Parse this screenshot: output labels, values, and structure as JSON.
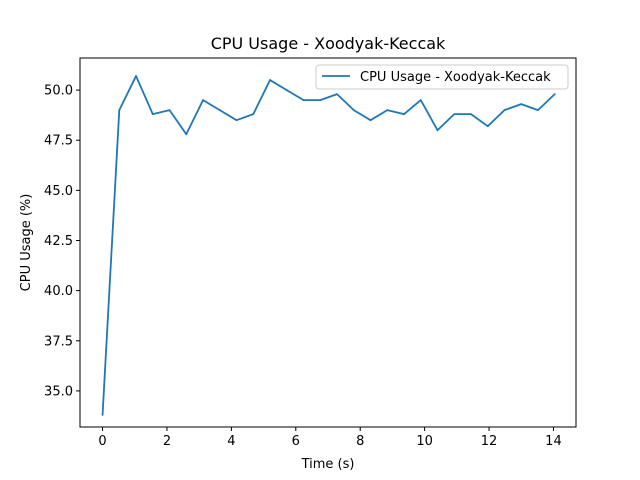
{
  "chart_data": {
    "type": "line",
    "title": "CPU Usage - Xoodyak-Keccak",
    "xlabel": "Time (s)",
    "ylabel": "CPU Usage (%)",
    "xlim": [
      -0.7,
      14.7
    ],
    "ylim": [
      33.2,
      51.6
    ],
    "xticks": [
      0,
      2,
      4,
      6,
      8,
      10,
      12,
      14
    ],
    "xtick_labels": [
      "0",
      "2",
      "4",
      "6",
      "8",
      "10",
      "12",
      "14"
    ],
    "yticks": [
      35.0,
      37.5,
      40.0,
      42.5,
      45.0,
      47.5,
      50.0
    ],
    "ytick_labels": [
      "35.0",
      "37.5",
      "40.0",
      "42.5",
      "45.0",
      "47.5",
      "50.0"
    ],
    "grid": false,
    "legend_position": "top-right",
    "series": [
      {
        "name": "CPU Usage - Xoodyak-Keccak",
        "color": "#1f77b4",
        "x": [
          0.0,
          0.52,
          1.04,
          1.56,
          2.08,
          2.6,
          3.12,
          3.64,
          4.16,
          4.68,
          5.2,
          5.72,
          6.24,
          6.76,
          7.28,
          7.8,
          8.32,
          8.84,
          9.36,
          9.88,
          10.4,
          10.92,
          11.44,
          11.96,
          12.48,
          13.0,
          13.52,
          14.04
        ],
        "y": [
          33.8,
          49.0,
          50.7,
          48.8,
          49.0,
          47.8,
          49.5,
          49.0,
          48.5,
          48.8,
          50.5,
          50.0,
          49.5,
          49.5,
          49.8,
          49.0,
          48.5,
          49.0,
          48.8,
          49.5,
          48.0,
          48.8,
          48.8,
          48.2,
          49.0,
          49.3,
          49.0,
          49.8
        ]
      }
    ]
  }
}
